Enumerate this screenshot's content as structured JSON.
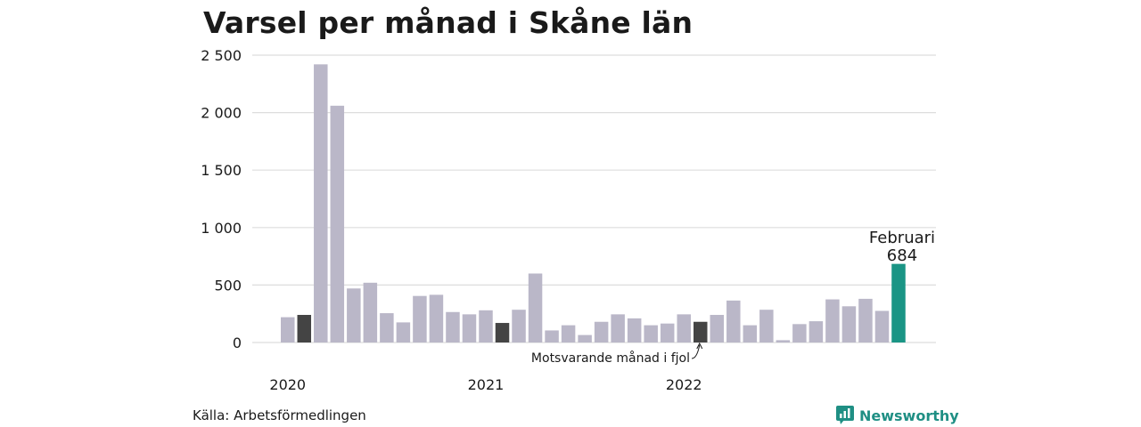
{
  "title": "Varsel per månad i Skåne län",
  "source": "Källa: Arbetsförmedlingen",
  "brand": "Newsworthy",
  "colors": {
    "bar": "#bab7c8",
    "highlight": "#444444",
    "current": "#1a9585",
    "grid": "#dddddd",
    "brand": "#1f8f84"
  },
  "chart_data": {
    "type": "bar",
    "title": "Varsel per månad i Skåne län",
    "xlabel": "",
    "ylabel": "",
    "ylim": [
      0,
      2500
    ],
    "y_ticks": [
      {
        "value": 0,
        "label": "0"
      },
      {
        "value": 500,
        "label": "500"
      },
      {
        "value": 1000,
        "label": "1 000"
      },
      {
        "value": 1500,
        "label": "1 500"
      },
      {
        "value": 2000,
        "label": "2 000"
      },
      {
        "value": 2500,
        "label": "2 500"
      }
    ],
    "x_year_labels": [
      {
        "label": "2020",
        "index": 0
      },
      {
        "label": "2021",
        "index": 12
      },
      {
        "label": "2022",
        "index": 24
      }
    ],
    "values": [
      220,
      240,
      2420,
      2060,
      470,
      520,
      255,
      175,
      405,
      415,
      265,
      245,
      280,
      170,
      285,
      600,
      105,
      150,
      65,
      180,
      245,
      210,
      150,
      165,
      245,
      180,
      240,
      365,
      150,
      285,
      20,
      160,
      185,
      375,
      315,
      380,
      275,
      684
    ],
    "highlight_indices": [
      1,
      13,
      25
    ],
    "current_index": 37,
    "annotation_current_label": "Februari",
    "annotation_current_value": "684",
    "annotation_previous_label": "Motsvarande månad i fjol",
    "grid": true,
    "legend": "none"
  }
}
